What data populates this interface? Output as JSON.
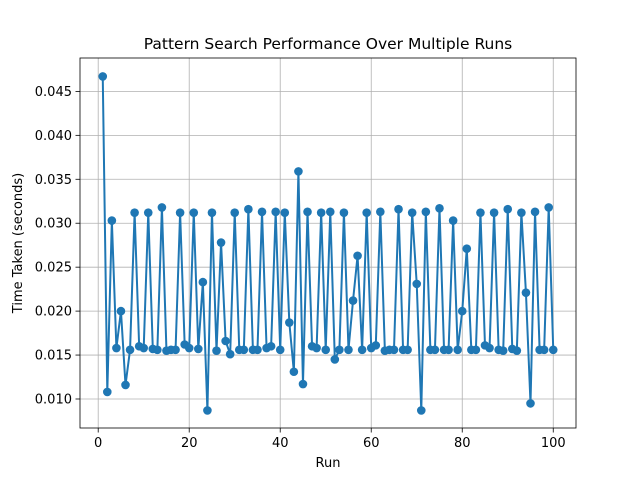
{
  "chart_data": {
    "type": "line",
    "title": "Pattern Search Performance Over Multiple Runs",
    "xlabel": "Run",
    "ylabel": "Time Taken (seconds)",
    "xlim": [
      -4,
      105
    ],
    "ylim": [
      0.0067,
      0.0488
    ],
    "xticks": [
      0,
      20,
      40,
      60,
      80,
      100
    ],
    "yticks": [
      0.01,
      0.015,
      0.02,
      0.025,
      0.03,
      0.035,
      0.04,
      0.045
    ],
    "xtick_labels": [
      "0",
      "20",
      "40",
      "60",
      "80",
      "100"
    ],
    "ytick_labels": [
      "0.010",
      "0.015",
      "0.020",
      "0.025",
      "0.030",
      "0.035",
      "0.040",
      "0.045"
    ],
    "grid": true,
    "markers": true,
    "color": "#1f77b4",
    "x": [
      1,
      2,
      3,
      4,
      5,
      6,
      7,
      8,
      9,
      10,
      11,
      12,
      13,
      14,
      15,
      16,
      17,
      18,
      19,
      20,
      21,
      22,
      23,
      24,
      25,
      26,
      27,
      28,
      29,
      30,
      31,
      32,
      33,
      34,
      35,
      36,
      37,
      38,
      39,
      40,
      41,
      42,
      43,
      44,
      45,
      46,
      47,
      48,
      49,
      50,
      51,
      52,
      53,
      54,
      55,
      56,
      57,
      58,
      59,
      60,
      61,
      62,
      63,
      64,
      65,
      66,
      67,
      68,
      69,
      70,
      71,
      72,
      73,
      74,
      75,
      76,
      77,
      78,
      79,
      80,
      81,
      82,
      83,
      84,
      85,
      86,
      87,
      88,
      89,
      90,
      91,
      92,
      93,
      94,
      95,
      96,
      97,
      98,
      99,
      100
    ],
    "y": [
      0.0467,
      0.0108,
      0.0303,
      0.0158,
      0.02,
      0.0116,
      0.0156,
      0.0312,
      0.016,
      0.0158,
      0.0312,
      0.0157,
      0.0156,
      0.0318,
      0.0155,
      0.0156,
      0.0156,
      0.0312,
      0.0162,
      0.0158,
      0.0312,
      0.0157,
      0.0233,
      0.0087,
      0.0312,
      0.0155,
      0.0278,
      0.0166,
      0.0151,
      0.0312,
      0.0156,
      0.0156,
      0.0316,
      0.0156,
      0.0156,
      0.0313,
      0.0158,
      0.016,
      0.0313,
      0.0156,
      0.0312,
      0.0187,
      0.0131,
      0.0359,
      0.0117,
      0.0313,
      0.016,
      0.0158,
      0.0312,
      0.0156,
      0.0313,
      0.0145,
      0.0156,
      0.0312,
      0.0156,
      0.0212,
      0.0263,
      0.0156,
      0.0312,
      0.0158,
      0.0161,
      0.0313,
      0.0155,
      0.0156,
      0.0156,
      0.0316,
      0.0156,
      0.0156,
      0.0312,
      0.0231,
      0.0087,
      0.0313,
      0.0156,
      0.0156,
      0.0317,
      0.0156,
      0.0156,
      0.0303,
      0.0156,
      0.02,
      0.0271,
      0.0156,
      0.0156,
      0.0312,
      0.0161,
      0.0158,
      0.0312,
      0.0156,
      0.0155,
      0.0316,
      0.0157,
      0.0155,
      0.0312,
      0.0221,
      0.0095,
      0.0313,
      0.0156,
      0.0156,
      0.0318,
      0.0156
    ]
  }
}
